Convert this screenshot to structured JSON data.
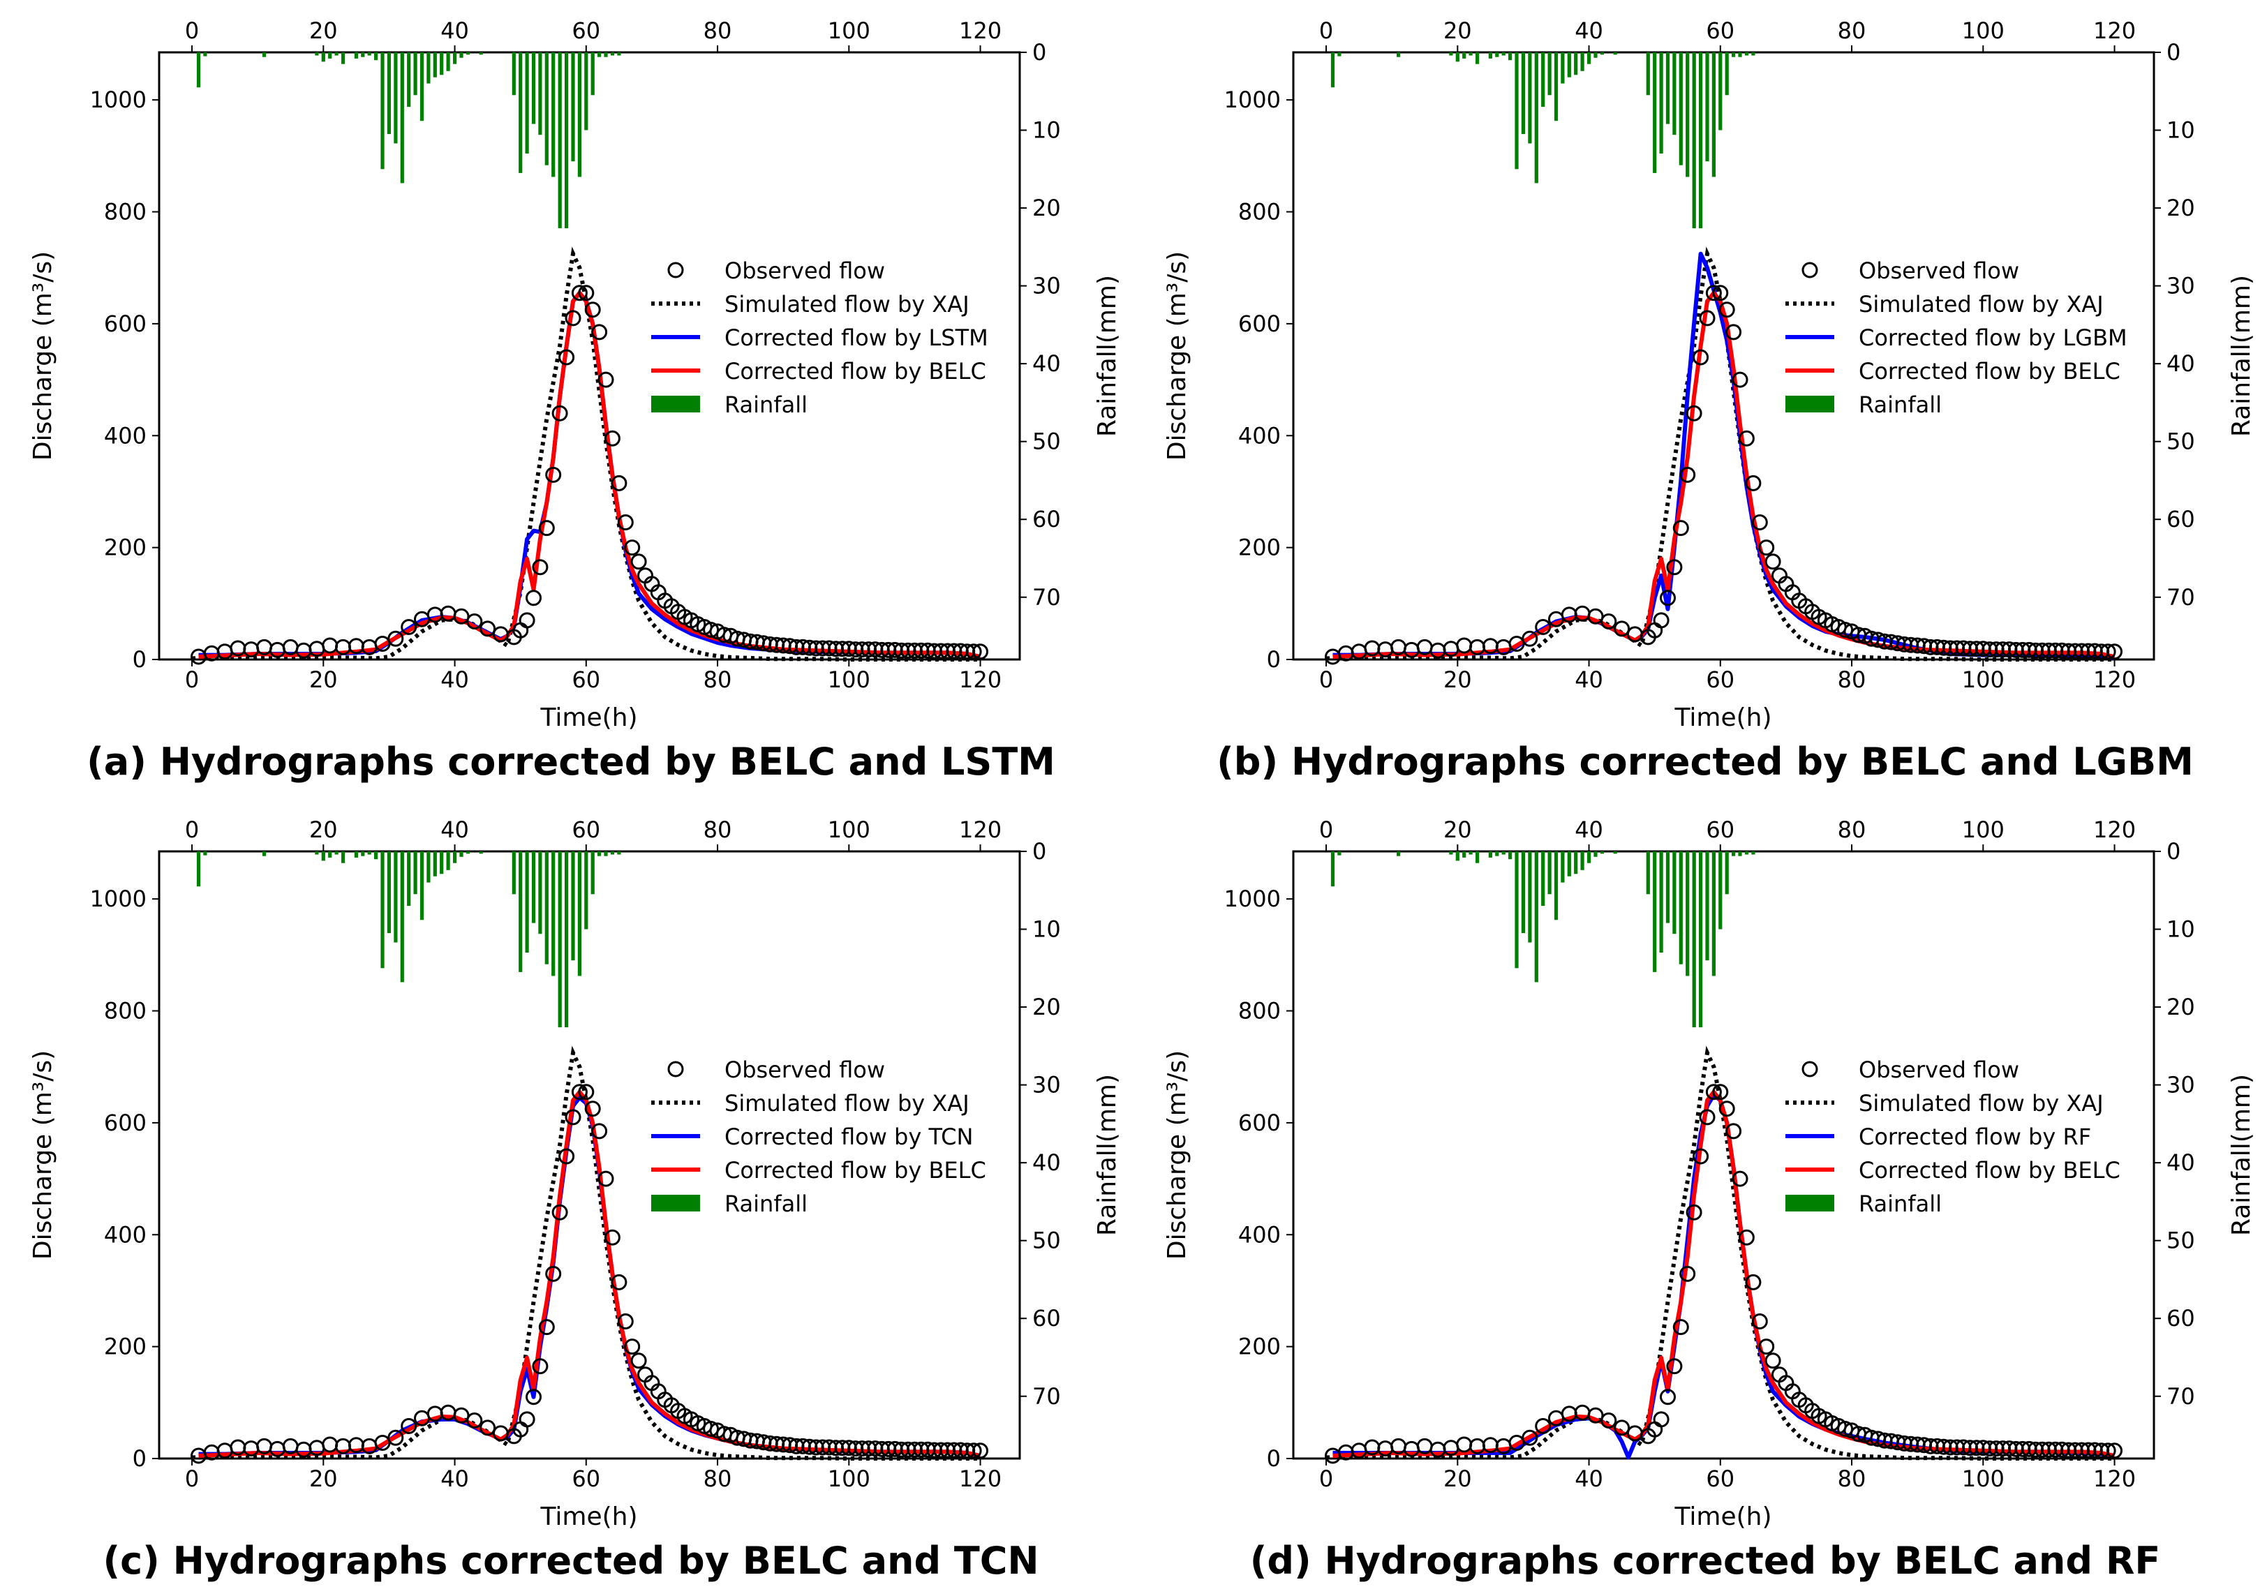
{
  "figure": {
    "shared": {
      "xlabel": "Time(h)",
      "ylabel_left": "Discharge (m³/s)",
      "ylabel_right": "Rainfall(mm)",
      "xlim": [
        -5,
        126
      ],
      "ylim_discharge": [
        0,
        1085
      ],
      "ylim_rainfall_inverted": [
        0,
        78
      ],
      "x_ticks": [
        0,
        20,
        40,
        60,
        80,
        100,
        120
      ],
      "y_ticks_discharge": [
        0,
        200,
        400,
        600,
        800,
        1000
      ],
      "y_ticks_rainfall": [
        0,
        10,
        20,
        30,
        40,
        50,
        60,
        70
      ],
      "legend_position": "center-right",
      "colors": {
        "observed": "#000000",
        "simulated": "#000000",
        "model": "#0000ff",
        "belc": "#ff0000",
        "rainfall": "#008000"
      },
      "labels": {
        "observed": "Observed flow",
        "simulated": "Simulated flow by XAJ",
        "belc": "Corrected flow by BELC",
        "rainfall": "Rainfall"
      }
    },
    "panels": [
      {
        "title": "(a) Hydrographs corrected by BELC and LSTM",
        "model_label": "Corrected flow by LSTM"
      },
      {
        "title": "(b) Hydrographs corrected by BELC and LGBM",
        "model_label": "Corrected flow by LGBM"
      },
      {
        "title": "(c) Hydrographs corrected by BELC and TCN",
        "model_label": "Corrected flow by TCN"
      },
      {
        "title": "(d) Hydrographs corrected by BELC and RF",
        "model_label": "Corrected flow by RF"
      }
    ]
  },
  "chart_data": {
    "type": "line",
    "panels": [
      "a",
      "b",
      "c",
      "d"
    ],
    "rainfall_mm": {
      "t": [
        1,
        2,
        3,
        4,
        5,
        6,
        7,
        8,
        9,
        10,
        11,
        12,
        13,
        14,
        15,
        16,
        17,
        18,
        19,
        20,
        21,
        22,
        23,
        24,
        25,
        26,
        27,
        28,
        29,
        30,
        31,
        32,
        33,
        34,
        35,
        36,
        37,
        38,
        39,
        40,
        41,
        42,
        43,
        44,
        45,
        46,
        47,
        48,
        49,
        50,
        51,
        52,
        53,
        54,
        55,
        56,
        57,
        58,
        59,
        60,
        61,
        62,
        63,
        64,
        65
      ],
      "values": [
        4.5,
        0.5,
        0,
        0,
        0,
        0,
        0,
        0,
        0,
        0,
        0.6,
        0,
        0,
        0,
        0,
        0,
        0,
        0,
        0.4,
        1.2,
        0.8,
        0.4,
        1.5,
        0,
        0.8,
        0.6,
        0.4,
        1,
        15,
        10.5,
        11.7,
        16.8,
        7,
        5.5,
        8.8,
        4,
        3.2,
        2.9,
        2.4,
        1.5,
        0.7,
        0.3,
        0,
        0.3,
        0,
        0,
        0,
        0,
        5.5,
        15.5,
        13,
        9.2,
        10.6,
        14.5,
        16,
        22.6,
        22.6,
        14,
        16,
        10,
        5.5,
        0.6,
        0.6,
        0.4,
        0.4
      ]
    },
    "observed": {
      "t": [
        1,
        3,
        5,
        7,
        9,
        11,
        13,
        15,
        17,
        19,
        21,
        23,
        25,
        27,
        29,
        31,
        33,
        35,
        37,
        39,
        41,
        43,
        45,
        47,
        49,
        50,
        51,
        52,
        53,
        54,
        55,
        56,
        57,
        58,
        59,
        60,
        61,
        62,
        63,
        64,
        65,
        66,
        67,
        68,
        69,
        70,
        71,
        72,
        73,
        74,
        75,
        76,
        77,
        78,
        79,
        80,
        81,
        82,
        83,
        84,
        85,
        86,
        87,
        88,
        89,
        90,
        91,
        92,
        93,
        94,
        95,
        96,
        97,
        98,
        99,
        100,
        101,
        102,
        103,
        104,
        105,
        106,
        107,
        108,
        109,
        110,
        111,
        112,
        113,
        114,
        115,
        116,
        117,
        118,
        119,
        120
      ],
      "values": [
        5,
        11,
        14,
        20,
        18,
        22,
        17,
        22,
        16,
        19,
        25,
        22,
        24,
        22,
        28,
        37,
        58,
        72,
        80,
        82,
        77,
        68,
        55,
        45,
        40,
        52,
        70,
        110,
        165,
        235,
        330,
        440,
        540,
        610,
        655,
        655,
        625,
        585,
        500,
        395,
        315,
        245,
        200,
        175,
        150,
        135,
        120,
        105,
        95,
        85,
        76,
        70,
        63,
        58,
        53,
        50,
        44,
        42,
        37,
        35,
        32,
        31,
        29,
        27,
        26,
        25,
        24,
        22,
        22,
        21,
        20,
        20,
        20,
        19,
        19,
        19,
        18,
        18,
        18,
        18,
        17,
        17,
        17,
        16,
        16,
        16,
        16,
        16,
        15,
        15,
        15,
        15,
        15,
        14,
        14,
        14
      ]
    },
    "simulated_xaj": {
      "t": [
        0,
        5,
        10,
        15,
        20,
        25,
        28,
        30,
        32,
        35,
        38,
        40,
        42,
        44,
        46,
        48,
        50,
        52,
        54,
        56,
        57,
        58,
        59,
        60,
        61,
        62,
        63,
        64,
        65,
        66,
        67,
        68,
        70,
        72,
        74,
        76,
        78,
        80,
        82,
        84,
        86,
        88,
        90,
        95,
        100,
        110,
        120
      ],
      "values": [
        2,
        3,
        5,
        5,
        4,
        3,
        2,
        5,
        20,
        50,
        70,
        72,
        68,
        55,
        40,
        25,
        120,
        280,
        430,
        560,
        650,
        725,
        700,
        640,
        570,
        480,
        390,
        310,
        240,
        185,
        140,
        105,
        65,
        40,
        26,
        16,
        10,
        6,
        4,
        3,
        2,
        1,
        1,
        1,
        0,
        0,
        0
      ]
    },
    "belc": {
      "t": [
        1,
        5,
        10,
        15,
        20,
        25,
        28,
        30,
        32,
        35,
        38,
        40,
        42,
        44,
        46,
        47,
        48,
        49,
        50,
        51,
        52,
        53,
        54,
        55,
        56,
        57,
        58,
        59,
        60,
        61,
        62,
        63,
        64,
        65,
        66,
        67,
        68,
        70,
        72,
        74,
        76,
        78,
        80,
        82,
        85,
        90,
        95,
        100,
        105,
        110,
        115,
        118,
        120
      ],
      "values": [
        5,
        7,
        10,
        8,
        9,
        14,
        18,
        32,
        45,
        65,
        75,
        74,
        65,
        52,
        40,
        34,
        42,
        60,
        140,
        180,
        125,
        215,
        280,
        360,
        470,
        560,
        640,
        655,
        640,
        600,
        520,
        420,
        330,
        255,
        200,
        160,
        135,
        100,
        80,
        64,
        52,
        43,
        36,
        30,
        24,
        18,
        16,
        14,
        12,
        12,
        12,
        10,
        5
      ]
    },
    "models": [
      {
        "name": "LSTM",
        "t": [
          1,
          5,
          10,
          15,
          20,
          25,
          28,
          30,
          32,
          35,
          38,
          40,
          42,
          44,
          46,
          47,
          48,
          49,
          50,
          51,
          52,
          53,
          54,
          55,
          56,
          57,
          58,
          59,
          60,
          61,
          62,
          63,
          64,
          65,
          66,
          67,
          68,
          70,
          72,
          74,
          76,
          78,
          80,
          82,
          85,
          90,
          95,
          100,
          105,
          110,
          115,
          118,
          120
        ],
        "values": [
          8,
          8,
          10,
          10,
          10,
          12,
          15,
          30,
          48,
          70,
          76,
          74,
          66,
          54,
          42,
          36,
          42,
          58,
          130,
          215,
          230,
          228,
          280,
          360,
          470,
          560,
          640,
          655,
          640,
          600,
          520,
          420,
          330,
          255,
          195,
          150,
          118,
          90,
          72,
          58,
          46,
          38,
          30,
          25,
          20,
          16,
          14,
          13,
          12,
          12,
          12,
          10,
          5
        ]
      },
      {
        "name": "LGBM",
        "t": [
          1,
          5,
          10,
          15,
          20,
          25,
          28,
          30,
          32,
          35,
          38,
          40,
          42,
          44,
          46,
          47,
          48,
          49,
          50,
          51,
          52,
          53,
          54,
          55,
          56,
          57,
          58,
          59,
          60,
          61,
          62,
          63,
          64,
          65,
          66,
          67,
          68,
          70,
          72,
          74,
          76,
          78,
          80,
          82,
          85,
          90,
          95,
          100,
          105,
          110,
          115,
          118,
          120
        ],
        "values": [
          8,
          8,
          10,
          10,
          10,
          12,
          15,
          30,
          48,
          68,
          76,
          74,
          64,
          52,
          40,
          34,
          40,
          55,
          110,
          150,
          90,
          200,
          320,
          470,
          600,
          725,
          700,
          660,
          620,
          570,
          500,
          400,
          310,
          240,
          190,
          150,
          125,
          95,
          75,
          60,
          50,
          45,
          42,
          40,
          35,
          20,
          10,
          8,
          8,
          8,
          8,
          6,
          3
        ]
      },
      {
        "name": "TCN",
        "t": [
          1,
          5,
          10,
          15,
          20,
          25,
          28,
          30,
          32,
          35,
          38,
          40,
          42,
          44,
          46,
          47,
          48,
          49,
          50,
          51,
          52,
          53,
          54,
          55,
          56,
          57,
          58,
          59,
          60,
          61,
          62,
          63,
          64,
          65,
          66,
          67,
          68,
          70,
          72,
          74,
          76,
          78,
          80,
          82,
          85,
          90,
          95,
          100,
          105,
          110,
          115,
          118,
          120
        ],
        "values": [
          8,
          8,
          10,
          10,
          10,
          12,
          15,
          32,
          50,
          66,
          70,
          70,
          62,
          50,
          40,
          34,
          38,
          52,
          120,
          160,
          110,
          200,
          270,
          350,
          460,
          550,
          630,
          645,
          635,
          595,
          515,
          418,
          330,
          255,
          198,
          155,
          125,
          96,
          76,
          61,
          50,
          42,
          36,
          30,
          24,
          18,
          15,
          13,
          12,
          12,
          12,
          10,
          5
        ]
      },
      {
        "name": "RF",
        "t": [
          1,
          5,
          10,
          15,
          20,
          25,
          28,
          30,
          32,
          35,
          38,
          40,
          42,
          44,
          45,
          46,
          47,
          48,
          49,
          50,
          51,
          52,
          53,
          54,
          55,
          56,
          57,
          58,
          59,
          60,
          61,
          62,
          63,
          64,
          65,
          66,
          67,
          68,
          70,
          72,
          74,
          76,
          78,
          80,
          82,
          85,
          90,
          95,
          100,
          105,
          110,
          115,
          118,
          120
        ],
        "values": [
          10,
          10,
          10,
          10,
          10,
          10,
          10,
          25,
          40,
          60,
          70,
          72,
          66,
          50,
          30,
          2,
          30,
          40,
          55,
          120,
          175,
          120,
          200,
          280,
          390,
          500,
          580,
          630,
          650,
          640,
          600,
          520,
          420,
          330,
          255,
          195,
          150,
          120,
          95,
          75,
          62,
          52,
          45,
          40,
          35,
          28,
          20,
          14,
          12,
          12,
          12,
          10,
          8,
          5
        ]
      }
    ]
  }
}
